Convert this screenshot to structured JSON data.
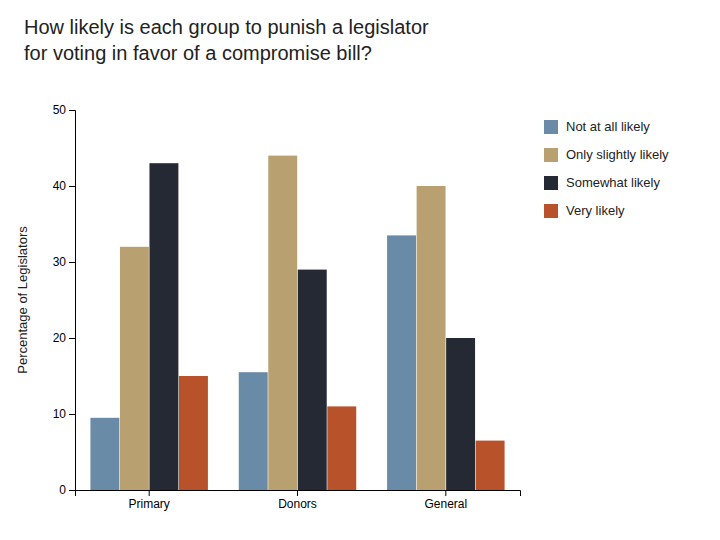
{
  "chart_data": {
    "type": "bar",
    "title": "How likely is each group to punish a legislator\nfor voting in favor of a compromise bill?",
    "categories": [
      "Primary",
      "Donors",
      "General"
    ],
    "series": [
      {
        "name": "Not at all likely",
        "color": "#6A8BA8",
        "values": [
          9.5,
          15.5,
          33.5
        ]
      },
      {
        "name": "Only slightly likely",
        "color": "#B8A070",
        "values": [
          32,
          44,
          40
        ]
      },
      {
        "name": "Somewhat likely",
        "color": "#252933",
        "values": [
          43,
          29,
          20
        ]
      },
      {
        "name": "Very likely",
        "color": "#B8522A",
        "values": [
          15,
          11,
          6.5
        ]
      }
    ],
    "ylabel": "Percentage of Legislators",
    "ylim": [
      0,
      50
    ],
    "yticks": [
      0,
      10,
      20,
      30,
      40,
      50
    ],
    "grid": false,
    "legend": "right"
  }
}
